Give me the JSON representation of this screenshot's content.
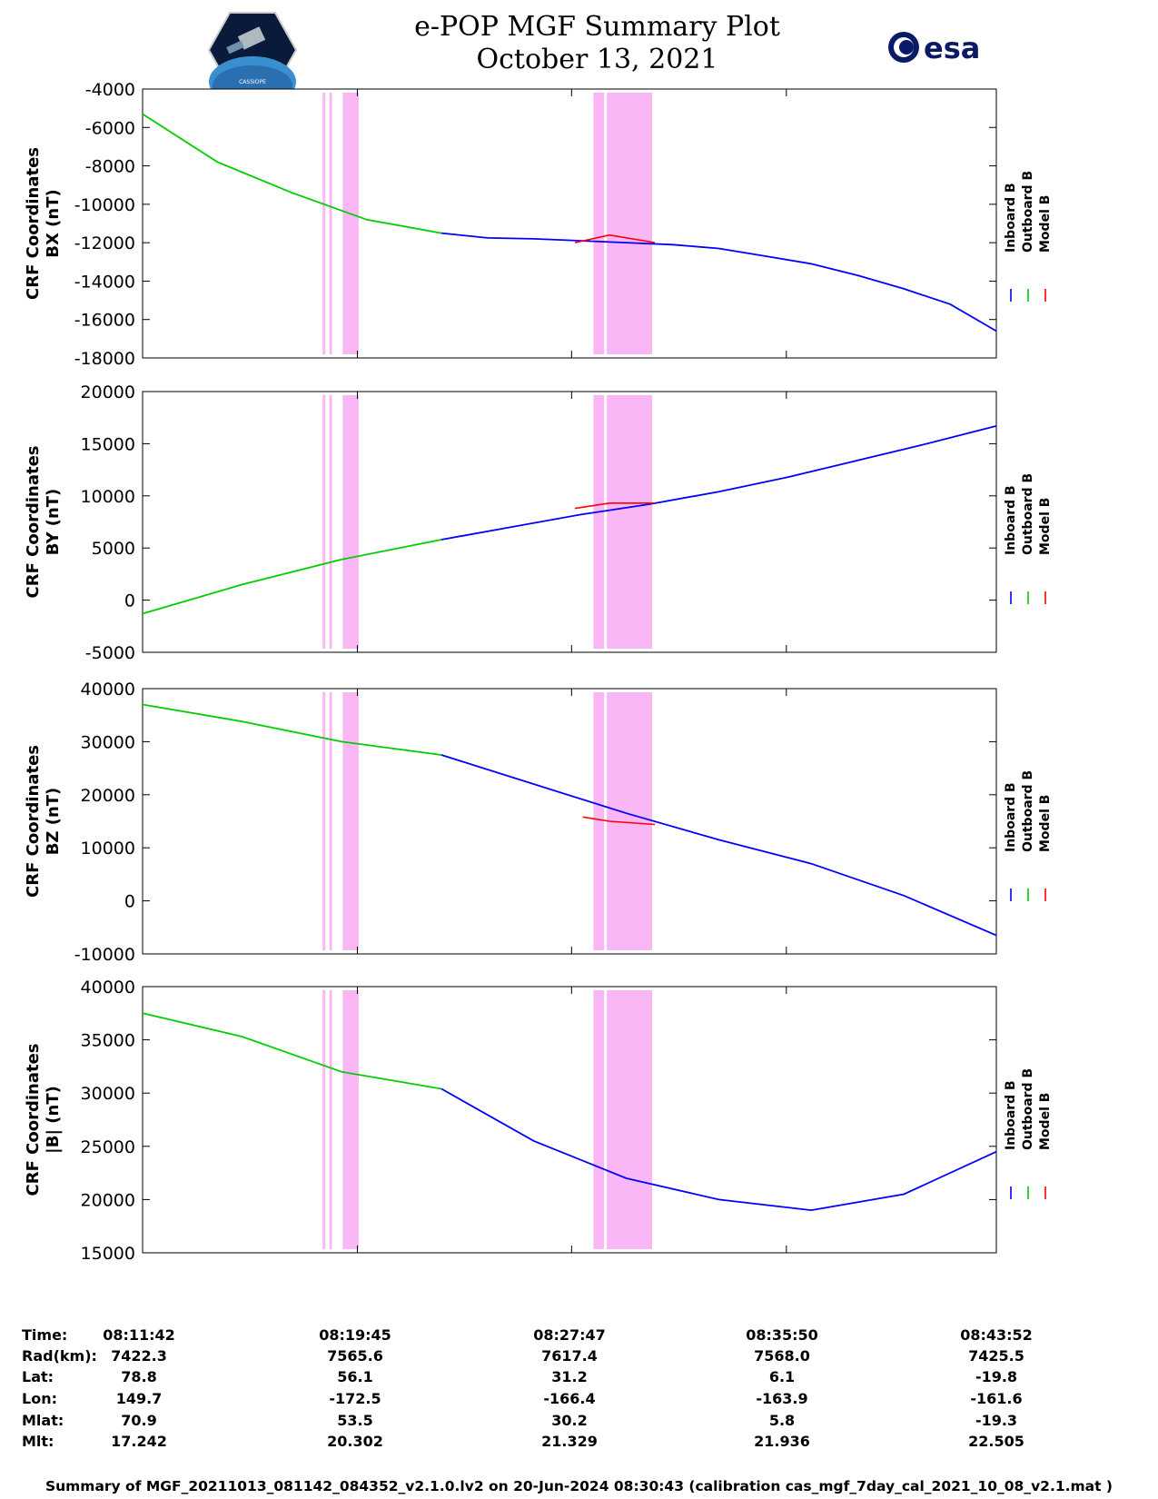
{
  "title": "e-POP MGF Summary Plot",
  "date": "October 13, 2021",
  "esa_logo_text": "esa",
  "cassiope_logo_text": "CASSIOPE",
  "legend": [
    "Inboard B",
    "Outboard B",
    "Model B"
  ],
  "colors": {
    "inboard": "#0000ff",
    "outboard": "#00cc00",
    "model": "#ff0000",
    "shade": "#f9b7f5"
  },
  "chart_data": [
    {
      "type": "line",
      "ylabel": [
        "CRF Coordinates",
        "BX (nT)"
      ],
      "ylim": [
        -18000,
        -4000
      ],
      "yticks": [
        -4000,
        -6000,
        -8000,
        -10000,
        -12000,
        -14000,
        -16000,
        -18000
      ],
      "x_minutes": [
        0,
        2,
        4,
        6,
        8,
        10,
        12,
        14,
        16,
        18,
        20,
        22,
        24,
        26,
        28,
        30,
        32
      ],
      "outboard": [
        -5300,
        -7800,
        -9400,
        -10800,
        -11500
      ],
      "inboard": [
        -11500,
        -11750,
        -11800,
        -11900,
        -12000,
        -12100,
        -12300,
        -12700,
        -13100,
        -13700,
        -14400,
        -15200,
        -16600
      ],
      "model_bump": {
        "x": [
          16.2,
          17.5,
          19.2
        ],
        "y": [
          -12000,
          -11600,
          -12000
        ]
      }
    },
    {
      "type": "line",
      "ylabel": [
        "CRF Coordinates",
        "BY (nT)"
      ],
      "ylim": [
        -5000,
        20000
      ],
      "yticks": [
        20000,
        15000,
        10000,
        5000,
        0,
        -5000
      ],
      "outboard": [
        -1300,
        1500,
        3900,
        5800
      ],
      "inboard": [
        5800,
        7000,
        8200,
        9200,
        10400,
        11800,
        13400,
        15000,
        16700
      ],
      "model_bump": {
        "x": [
          16.2,
          17.5,
          19.2
        ],
        "y": [
          8800,
          9300,
          9300
        ]
      }
    },
    {
      "type": "line",
      "ylabel": [
        "CRF Coordinates",
        "BZ (nT)"
      ],
      "ylim": [
        -10000,
        40000
      ],
      "yticks": [
        40000,
        30000,
        20000,
        10000,
        0,
        -10000
      ],
      "outboard": [
        37000,
        33800,
        30000,
        27500
      ],
      "inboard": [
        27500,
        22000,
        16500,
        11500,
        7000,
        1000,
        -6500
      ],
      "model_bump": {
        "x": [
          16.5,
          17.5,
          19.2
        ],
        "y": [
          15800,
          15000,
          14400
        ]
      }
    },
    {
      "type": "line",
      "ylabel": [
        "CRF Coordinates",
        "|B| (nT)"
      ],
      "ylim": [
        15000,
        40000
      ],
      "yticks": [
        40000,
        35000,
        30000,
        25000,
        20000,
        15000
      ],
      "outboard": [
        37500,
        35300,
        32000,
        30400
      ],
      "inboard": [
        30400,
        25500,
        22000,
        20000,
        19000,
        20500,
        24500
      ],
      "model_bump": null
    }
  ],
  "shaded_intervals_minutes": [
    [
      6.75,
      6.85
    ],
    [
      7.0,
      7.1
    ],
    [
      7.5,
      8.1
    ],
    [
      16.9,
      17.3
    ],
    [
      17.4,
      19.1
    ]
  ],
  "time_axis": {
    "labels": [
      "Time:",
      "Rad(km):",
      "Lat:",
      "Lon:",
      "Mlat:",
      "Mlt:"
    ],
    "columns": [
      [
        "08:11:42",
        "7422.3",
        "78.8",
        "149.7",
        "70.9",
        "17.242"
      ],
      [
        "08:19:45",
        "7565.6",
        "56.1",
        "-172.5",
        "53.5",
        "20.302"
      ],
      [
        "08:27:47",
        "7617.4",
        "31.2",
        "-166.4",
        "30.2",
        "21.329"
      ],
      [
        "08:35:50",
        "7568.0",
        "6.1",
        "-163.9",
        "5.8",
        "21.936"
      ],
      [
        "08:43:52",
        "7425.5",
        "-19.8",
        "-161.6",
        "-19.3",
        "22.505"
      ]
    ]
  },
  "footer": "Summary of MGF_20211013_081142_084352_v2.1.0.lv2 on 20-Jun-2024 08:30:43 (calibration cas_mgf_7day_cal_2021_10_08_v2.1.mat )"
}
